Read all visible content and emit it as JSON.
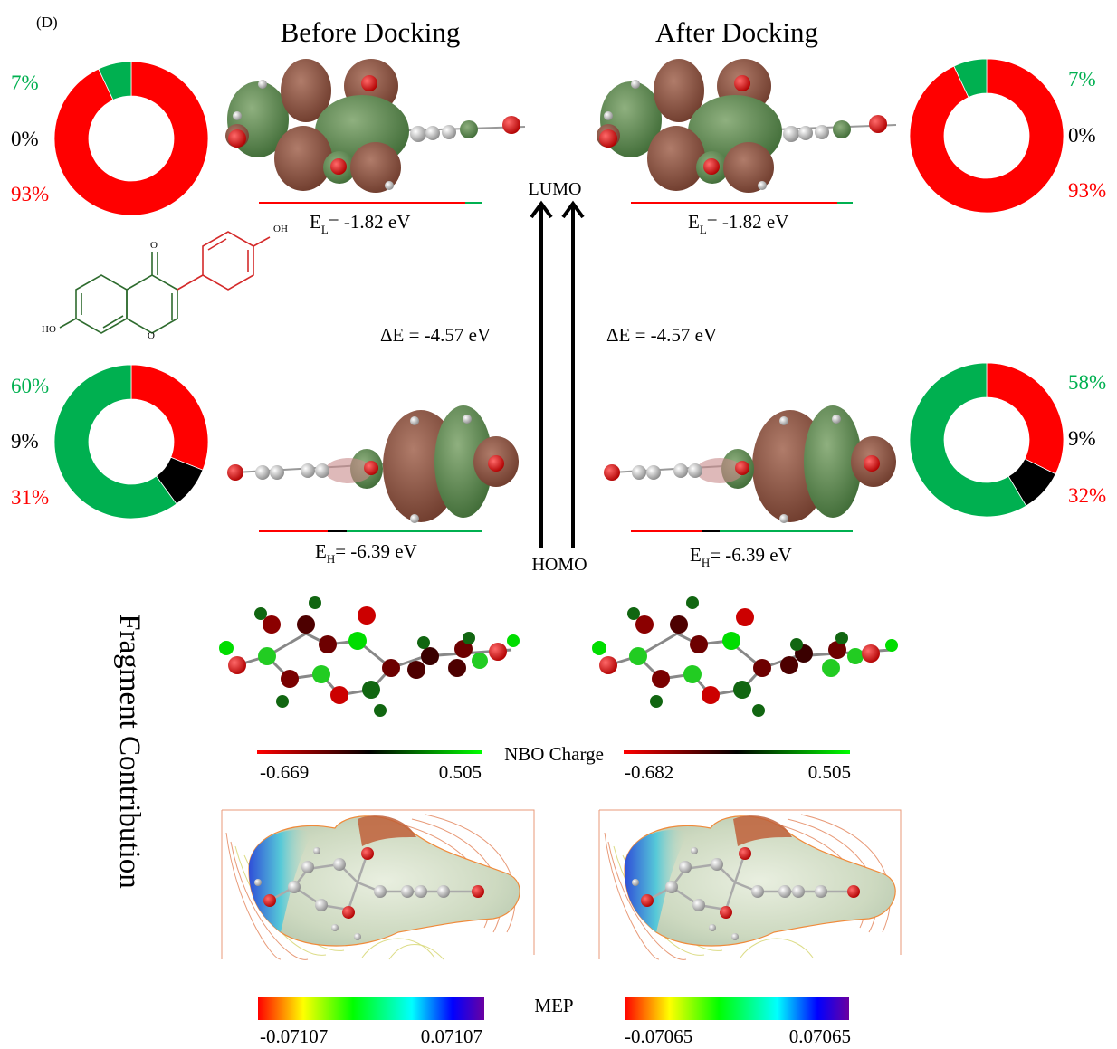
{
  "panel_label": "(D)",
  "titles": {
    "before": "Before Docking",
    "after": "After Docking"
  },
  "labels": {
    "lumo": "LUMO",
    "homo": "HOMO",
    "delta_e_before": "ΔE = -4.57 eV",
    "delta_e_after": "ΔE = -4.57 eV",
    "el_before": {
      "main": "E",
      "sub": "L",
      "rest": "= -1.82 eV"
    },
    "el_after": {
      "main": "E",
      "sub": "L",
      "rest": "= -1.82 eV"
    },
    "eh_before": {
      "main": "E",
      "sub": "H",
      "rest": "= -6.39 eV"
    },
    "eh_after": {
      "main": "E",
      "sub": "H",
      "rest": "= -6.39 eV"
    },
    "side_label": "Fragment Contribution",
    "nbo_title": "NBO Charge",
    "mep_title": "MEP",
    "oh_top": "OH",
    "ho_left": "HO",
    "o_label": "O"
  },
  "scales": {
    "nbo_before": {
      "min": "-0.669",
      "max": "0.505"
    },
    "nbo_after": {
      "min": "-0.682",
      "max": "0.505"
    },
    "mep_before": {
      "min": "-0.07107",
      "max": "0.07107"
    },
    "mep_after": {
      "min": "-0.07065",
      "max": "0.07065"
    }
  },
  "colors": {
    "red": "#ff0000",
    "green": "#00b050",
    "black": "#000000"
  },
  "chart_data": [
    {
      "type": "pie",
      "segments": [
        {
          "label": "7%",
          "value": 7,
          "color": "#00b050"
        },
        {
          "label": "0%",
          "value": 0,
          "color": "#000000"
        },
        {
          "label": "93%",
          "value": 93,
          "color": "#ff0000"
        }
      ]
    },
    {
      "type": "pie",
      "segments": [
        {
          "label": "7%",
          "value": 7,
          "color": "#00b050"
        },
        {
          "label": "0%",
          "value": 0,
          "color": "#000000"
        },
        {
          "label": "93%",
          "value": 93,
          "color": "#ff0000"
        }
      ]
    },
    {
      "type": "pie",
      "segments": [
        {
          "label": "60%",
          "value": 60,
          "color": "#00b050"
        },
        {
          "label": "9%",
          "value": 9,
          "color": "#000000"
        },
        {
          "label": "31%",
          "value": 31,
          "color": "#ff0000"
        }
      ]
    },
    {
      "type": "pie",
      "segments": [
        {
          "label": "58%",
          "value": 58,
          "color": "#00b050"
        },
        {
          "label": "9%",
          "value": 9,
          "color": "#000000"
        },
        {
          "label": "32%",
          "value": 32,
          "color": "#ff0000"
        }
      ]
    }
  ]
}
